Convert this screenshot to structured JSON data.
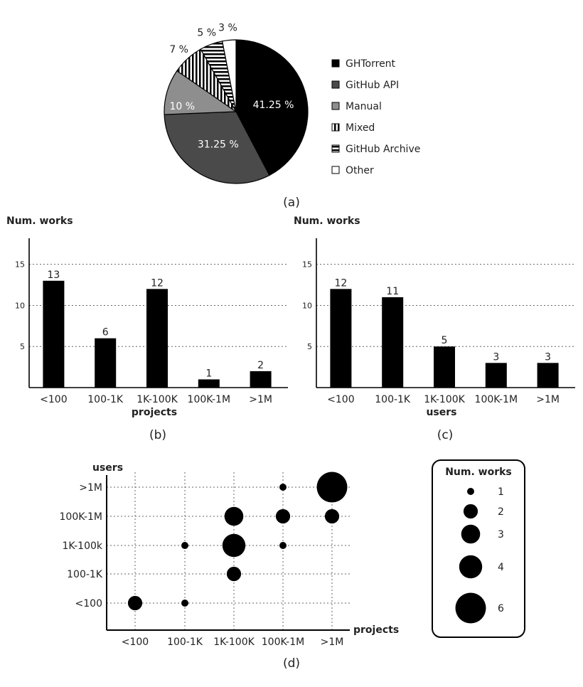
{
  "chart_data": [
    {
      "panel": "(a)",
      "type": "pie",
      "slices": [
        {
          "label": "GHTorrent",
          "value": 41.25,
          "value_label": "41.25 %",
          "color": "#000000",
          "pattern": "solid"
        },
        {
          "label": "GitHub API",
          "value": 31.25,
          "value_label": "31.25 %",
          "color": "#4a4a4a",
          "pattern": "solid"
        },
        {
          "label": "Manual",
          "value": 10,
          "value_label": "10 %",
          "color": "#8e8e8e",
          "pattern": "solid"
        },
        {
          "label": "Mixed",
          "value": 7,
          "value_label": "7 %",
          "color": "#000000",
          "pattern": "vertical-stripes"
        },
        {
          "label": "GitHub Archive",
          "value": 5,
          "value_label": "5 %",
          "color": "#000000",
          "pattern": "horizontal-stripes"
        },
        {
          "label": "Other",
          "value": 3,
          "value_label": "3 %",
          "color": "#ffffff",
          "pattern": "solid"
        }
      ],
      "legend_placement": "right"
    },
    {
      "panel": "(b)",
      "type": "bar",
      "ylabel": "Num. works",
      "xlabel": "projects",
      "categories": [
        "<100",
        "100-1K",
        "1K-100K",
        "100K-1M",
        ">1M"
      ],
      "values": [
        13,
        6,
        12,
        1,
        2
      ],
      "yticks": [
        5,
        10,
        15
      ],
      "ylim": [
        0,
        18
      ],
      "grid": "horizontal-dotted"
    },
    {
      "panel": "(c)",
      "type": "bar",
      "ylabel": "Num. works",
      "xlabel": "users",
      "categories": [
        "<100",
        "100-1K",
        "1K-100K",
        "100K-1M",
        ">1M"
      ],
      "values": [
        12,
        11,
        5,
        3,
        3
      ],
      "yticks": [
        5,
        10,
        15
      ],
      "ylim": [
        0,
        18
      ],
      "grid": "horizontal-dotted"
    },
    {
      "panel": "(d)",
      "type": "scatter",
      "xlabel": "projects",
      "ylabel": "users",
      "x_categories": [
        "<100",
        "100-1K",
        "1K-100K",
        "100K-1M",
        ">1M"
      ],
      "y_categories": [
        "<100",
        "100-1K",
        "1K-100k",
        "100K-1M",
        ">1M"
      ],
      "points": [
        {
          "x": "<100",
          "y": "<100",
          "works": 2
        },
        {
          "x": "100-1K",
          "y": "<100",
          "works": 1
        },
        {
          "x": "1K-100K",
          "y": "100-1K",
          "works": 2
        },
        {
          "x": "100-1K",
          "y": "1K-100k",
          "works": 1
        },
        {
          "x": "1K-100K",
          "y": "1K-100k",
          "works": 4
        },
        {
          "x": "100K-1M",
          "y": "1K-100k",
          "works": 1
        },
        {
          "x": "1K-100K",
          "y": "100K-1M",
          "works": 3
        },
        {
          "x": "100K-1M",
          "y": "100K-1M",
          "works": 2
        },
        {
          "x": ">1M",
          "y": "100K-1M",
          "works": 2
        },
        {
          "x": "100K-1M",
          "y": ">1M",
          "works": 1
        },
        {
          "x": ">1M",
          "y": ">1M",
          "works": 6
        }
      ],
      "size_legend_title": "Num. works",
      "size_legend": [
        1,
        2,
        3,
        4,
        6
      ],
      "grid": "dotted"
    }
  ],
  "captions": {
    "a": "(a)",
    "b": "(b)",
    "c": "(c)",
    "d": "(d)"
  }
}
